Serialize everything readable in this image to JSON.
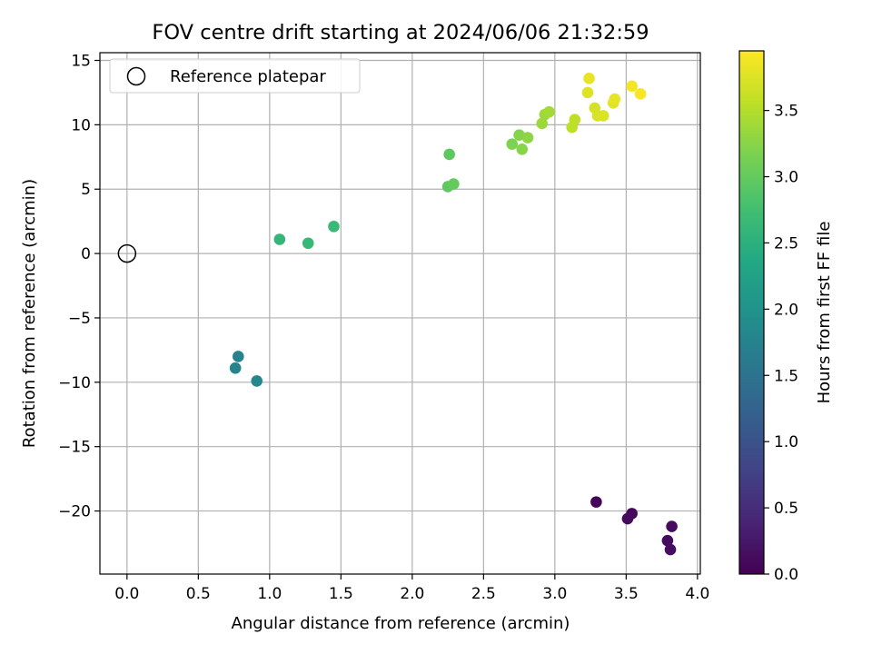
{
  "chart_data": {
    "type": "scatter",
    "title": "FOV centre drift starting at 2024/06/06 21:32:59",
    "xlabel": "Angular distance from reference (arcmin)",
    "ylabel": "Rotation from reference (arcmin)",
    "xlim": [
      -0.19,
      4.02
    ],
    "ylim": [
      -24.9,
      15.6
    ],
    "xticks": [
      0.0,
      0.5,
      1.0,
      1.5,
      2.0,
      2.5,
      3.0,
      3.5,
      4.0
    ],
    "xtick_labels": [
      "0.0",
      "0.5",
      "1.0",
      "1.5",
      "2.0",
      "2.5",
      "3.0",
      "3.5",
      "4.0"
    ],
    "yticks": [
      15,
      10,
      5,
      0,
      -5,
      -10,
      -15,
      -20
    ],
    "ytick_labels": [
      "15",
      "10",
      "5",
      "0",
      "−5",
      "−10",
      "−15",
      "−20"
    ],
    "grid": true,
    "legend": {
      "placement": "top-left",
      "entries": [
        {
          "label": "Reference platepar",
          "marker": "open-circle"
        }
      ]
    },
    "reference_point": {
      "x": 0.0,
      "y": 0.0
    },
    "colorbar": {
      "label": "Hours from first FF file",
      "colormap": "viridis",
      "range": [
        0.0,
        3.95
      ],
      "ticks": [
        0.0,
        0.5,
        1.0,
        1.5,
        2.0,
        2.5,
        3.0,
        3.5
      ],
      "tick_labels": [
        "0.0",
        "0.5",
        "1.0",
        "1.5",
        "2.0",
        "2.5",
        "3.0",
        "3.5"
      ]
    },
    "points": [
      {
        "x": 3.29,
        "y": -19.3,
        "c": 0.05
      },
      {
        "x": 3.54,
        "y": -20.2,
        "c": 0.08
      },
      {
        "x": 3.51,
        "y": -20.6,
        "c": 0.1
      },
      {
        "x": 3.82,
        "y": -21.2,
        "c": 0.12
      },
      {
        "x": 3.79,
        "y": -22.3,
        "c": 0.13
      },
      {
        "x": 3.81,
        "y": -23.0,
        "c": 0.15
      },
      {
        "x": 0.78,
        "y": -8.0,
        "c": 1.75
      },
      {
        "x": 0.76,
        "y": -8.9,
        "c": 1.78
      },
      {
        "x": 0.91,
        "y": -9.9,
        "c": 1.8
      },
      {
        "x": 1.07,
        "y": 1.1,
        "c": 2.6
      },
      {
        "x": 1.27,
        "y": 0.8,
        "c": 2.62
      },
      {
        "x": 1.45,
        "y": 2.1,
        "c": 2.65
      },
      {
        "x": 2.26,
        "y": 7.7,
        "c": 2.95
      },
      {
        "x": 2.25,
        "y": 5.2,
        "c": 2.97
      },
      {
        "x": 2.29,
        "y": 5.4,
        "c": 3.0
      },
      {
        "x": 2.7,
        "y": 8.5,
        "c": 3.18
      },
      {
        "x": 2.75,
        "y": 9.2,
        "c": 3.22
      },
      {
        "x": 2.77,
        "y": 8.1,
        "c": 3.24
      },
      {
        "x": 2.81,
        "y": 9.0,
        "c": 3.26
      },
      {
        "x": 2.91,
        "y": 10.1,
        "c": 3.35
      },
      {
        "x": 2.93,
        "y": 10.8,
        "c": 3.38
      },
      {
        "x": 2.96,
        "y": 11.0,
        "c": 3.4
      },
      {
        "x": 3.12,
        "y": 9.8,
        "c": 3.55
      },
      {
        "x": 3.14,
        "y": 10.4,
        "c": 3.57
      },
      {
        "x": 3.24,
        "y": 13.6,
        "c": 3.82
      },
      {
        "x": 3.23,
        "y": 12.5,
        "c": 3.76
      },
      {
        "x": 3.28,
        "y": 11.3,
        "c": 3.7
      },
      {
        "x": 3.3,
        "y": 10.7,
        "c": 3.72
      },
      {
        "x": 3.34,
        "y": 10.7,
        "c": 3.74
      },
      {
        "x": 3.41,
        "y": 11.7,
        "c": 3.78
      },
      {
        "x": 3.42,
        "y": 12.0,
        "c": 3.8
      },
      {
        "x": 3.54,
        "y": 13.0,
        "c": 3.9
      },
      {
        "x": 3.6,
        "y": 12.4,
        "c": 3.92
      }
    ]
  }
}
